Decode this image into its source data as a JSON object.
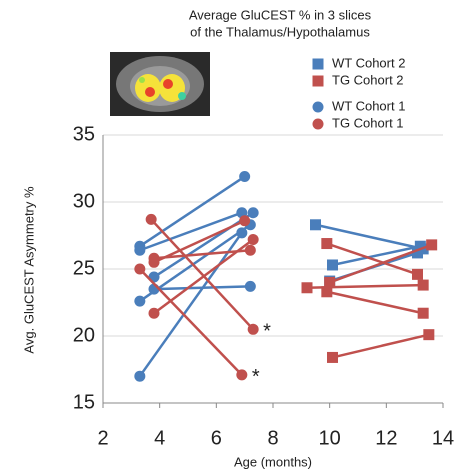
{
  "chart_data": {
    "type": "paired-scatter",
    "title": [
      "Average GluCEST % in 3 slices",
      "of the Thalamus/Hypothalamus"
    ],
    "x_label": "Age (months)",
    "y_label": "Avg. GluCEST Asymmetry %",
    "xlim": [
      2,
      14
    ],
    "xticks": [
      2,
      4,
      6,
      8,
      10,
      12,
      14
    ],
    "ylim": [
      15,
      35
    ],
    "yticks": [
      15,
      20,
      25,
      30,
      35
    ],
    "grid": true,
    "series": [
      {
        "name": "WT Cohort 2",
        "color": "#4a7ebb",
        "marker": "square",
        "segments": [
          {
            "x": [
              9.5,
              13.3
            ],
            "values": [
              28.3,
              26.5
            ]
          },
          {
            "x": [
              10.1,
              13.2
            ],
            "values": [
              25.3,
              26.7
            ]
          },
          {
            "x": [
              10.0,
              13.1
            ],
            "values": [
              24.1,
              26.2
            ]
          }
        ]
      },
      {
        "name": "TG Cohort 2",
        "color": "#c0504d",
        "marker": "square",
        "segments": [
          {
            "x": [
              9.9,
              13.1
            ],
            "values": [
              26.9,
              24.6
            ]
          },
          {
            "x": [
              10.0,
              13.6
            ],
            "values": [
              24.0,
              26.8
            ]
          },
          {
            "x": [
              9.2,
              13.3
            ],
            "values": [
              23.6,
              23.8
            ]
          },
          {
            "x": [
              9.9,
              13.3
            ],
            "values": [
              23.3,
              21.7
            ]
          },
          {
            "x": [
              10.1,
              13.5
            ],
            "values": [
              18.4,
              20.1
            ]
          }
        ]
      },
      {
        "name": "WT Cohort 1",
        "color": "#4a7ebb",
        "marker": "circle",
        "segments": [
          {
            "x": [
              3.3,
              7.0
            ],
            "values": [
              26.7,
              31.9
            ]
          },
          {
            "x": [
              3.3,
              6.9
            ],
            "values": [
              26.4,
              29.2
            ]
          },
          {
            "x": [
              3.8,
              7.3
            ],
            "values": [
              24.4,
              29.2
            ]
          },
          {
            "x": [
              3.8,
              7.2
            ],
            "values": [
              23.5,
              23.7
            ]
          },
          {
            "x": [
              3.3,
              7.2
            ],
            "values": [
              22.6,
              28.3
            ]
          },
          {
            "x": [
              3.3,
              6.9
            ],
            "values": [
              17.0,
              27.7
            ]
          }
        ]
      },
      {
        "name": "TG Cohort 1",
        "color": "#c0504d",
        "marker": "circle",
        "segments": [
          {
            "x": [
              3.7,
              7.3
            ],
            "values": [
              28.7,
              20.5
            ]
          },
          {
            "x": [
              3.3,
              6.9
            ],
            "values": [
              25.0,
              17.1
            ]
          },
          {
            "x": [
              3.8,
              7.2
            ],
            "values": [
              25.8,
              26.4
            ]
          },
          {
            "x": [
              3.8,
              7.0
            ],
            "values": [
              25.5,
              28.6
            ]
          },
          {
            "x": [
              3.8,
              7.3
            ],
            "values": [
              21.7,
              27.2
            ]
          }
        ]
      }
    ],
    "annotations": [
      "*",
      "*"
    ]
  }
}
